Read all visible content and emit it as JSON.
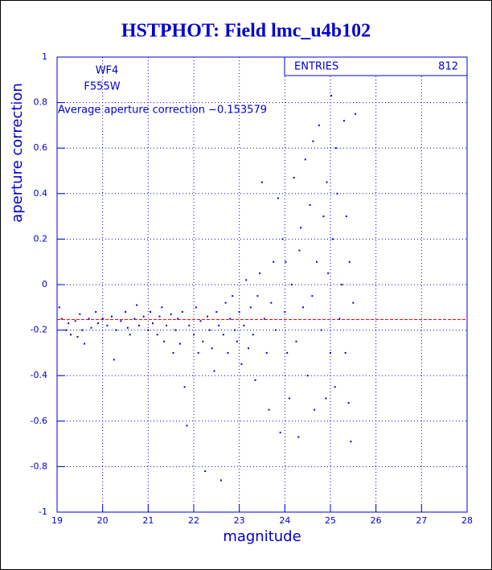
{
  "chart_data": {
    "type": "scatter",
    "title": "HSTPHOT: Field lmc_u4b102",
    "xlabel": "magnitude",
    "ylabel": "aperture correction",
    "annotations": [
      "WF4",
      "F555W",
      "Average aperture correction −0.153579"
    ],
    "stats": {
      "label": "ENTRIES",
      "value": 812
    },
    "reference_line": {
      "value": -0.153579,
      "color": "#ff0000"
    },
    "xlim": [
      19,
      28
    ],
    "xticks": [
      19,
      20,
      21,
      22,
      23,
      24,
      25,
      26,
      27,
      28
    ],
    "ylim": [
      -1,
      1
    ],
    "yticks": [
      -1,
      -0.8,
      -0.6,
      -0.4,
      -0.2,
      0,
      0.2,
      0.4,
      0.6,
      0.8,
      1
    ],
    "grid": true,
    "series": [
      {
        "color": "#0000cc",
        "x": [
          19.05,
          19.1,
          19.2,
          19.25,
          19.3,
          19.4,
          19.45,
          19.5,
          19.55,
          19.6,
          19.7,
          19.75,
          19.85,
          19.9,
          20.0,
          20.1,
          20.2,
          20.25,
          20.3,
          20.4,
          20.5,
          20.55,
          20.6,
          20.7,
          20.75,
          20.8,
          20.9,
          21.0,
          21.05,
          21.1,
          21.2,
          21.25,
          21.3,
          21.35,
          21.4,
          21.5,
          21.55,
          21.6,
          21.65,
          21.7,
          21.75,
          21.8,
          21.85,
          21.9,
          22.0,
          22.05,
          22.1,
          22.15,
          22.2,
          22.25,
          22.3,
          22.35,
          22.4,
          22.45,
          22.5,
          22.55,
          22.6,
          22.65,
          22.7,
          22.75,
          22.8,
          22.85,
          22.9,
          22.95,
          23.0,
          23.05,
          23.1,
          23.15,
          23.2,
          23.25,
          23.3,
          23.35,
          23.4,
          23.45,
          23.5,
          23.55,
          23.6,
          23.65,
          23.7,
          23.75,
          23.8,
          23.85,
          23.9,
          23.95,
          24.0,
          24.02,
          24.05,
          24.1,
          24.15,
          24.2,
          24.25,
          24.3,
          24.32,
          24.35,
          24.4,
          24.45,
          24.5,
          24.55,
          24.6,
          24.62,
          24.65,
          24.7,
          24.75,
          24.8,
          24.85,
          24.9,
          24.92,
          24.95,
          25.0,
          25.02,
          25.05,
          25.1,
          25.12,
          25.15,
          25.2,
          25.25,
          25.3,
          25.33,
          25.35,
          25.4,
          25.42,
          25.45,
          25.5,
          25.55
        ],
        "values": [
          -0.1,
          -0.15,
          -0.2,
          -0.17,
          -0.22,
          -0.16,
          -0.23,
          -0.13,
          -0.2,
          -0.26,
          -0.15,
          -0.19,
          -0.12,
          -0.17,
          -0.15,
          -0.18,
          -0.14,
          -0.33,
          -0.2,
          -0.16,
          -0.12,
          -0.19,
          -0.22,
          -0.15,
          -0.09,
          -0.18,
          -0.14,
          -0.2,
          -0.12,
          -0.17,
          -0.22,
          -0.14,
          -0.1,
          -0.25,
          -0.18,
          -0.13,
          -0.3,
          -0.2,
          -0.15,
          -0.26,
          -0.12,
          -0.45,
          -0.62,
          -0.18,
          -0.22,
          -0.1,
          -0.3,
          -0.16,
          -0.25,
          -0.82,
          -0.14,
          -0.2,
          -0.28,
          -0.38,
          -0.12,
          -0.18,
          -0.86,
          -0.22,
          -0.08,
          -0.3,
          -0.15,
          -0.05,
          -0.2,
          -0.25,
          -0.12,
          -0.35,
          -0.18,
          0.02,
          -0.28,
          -0.1,
          -0.22,
          -0.42,
          -0.05,
          0.05,
          0.45,
          -0.15,
          -0.3,
          -0.55,
          -0.08,
          0.1,
          -0.2,
          0.38,
          -0.65,
          0.2,
          -0.12,
          0.1,
          -0.3,
          -0.5,
          0.0,
          0.47,
          -0.25,
          -0.67,
          0.15,
          0.25,
          -0.1,
          0.55,
          -0.4,
          0.35,
          -0.05,
          0.63,
          -0.55,
          0.1,
          0.7,
          -0.2,
          0.3,
          -0.5,
          0.45,
          0.05,
          -0.3,
          0.83,
          0.2,
          -0.45,
          0.6,
          0.4,
          -0.15,
          0.0,
          0.72,
          -0.3,
          0.3,
          -0.52,
          0.1,
          -0.69,
          -0.08,
          0.75
        ]
      }
    ]
  }
}
